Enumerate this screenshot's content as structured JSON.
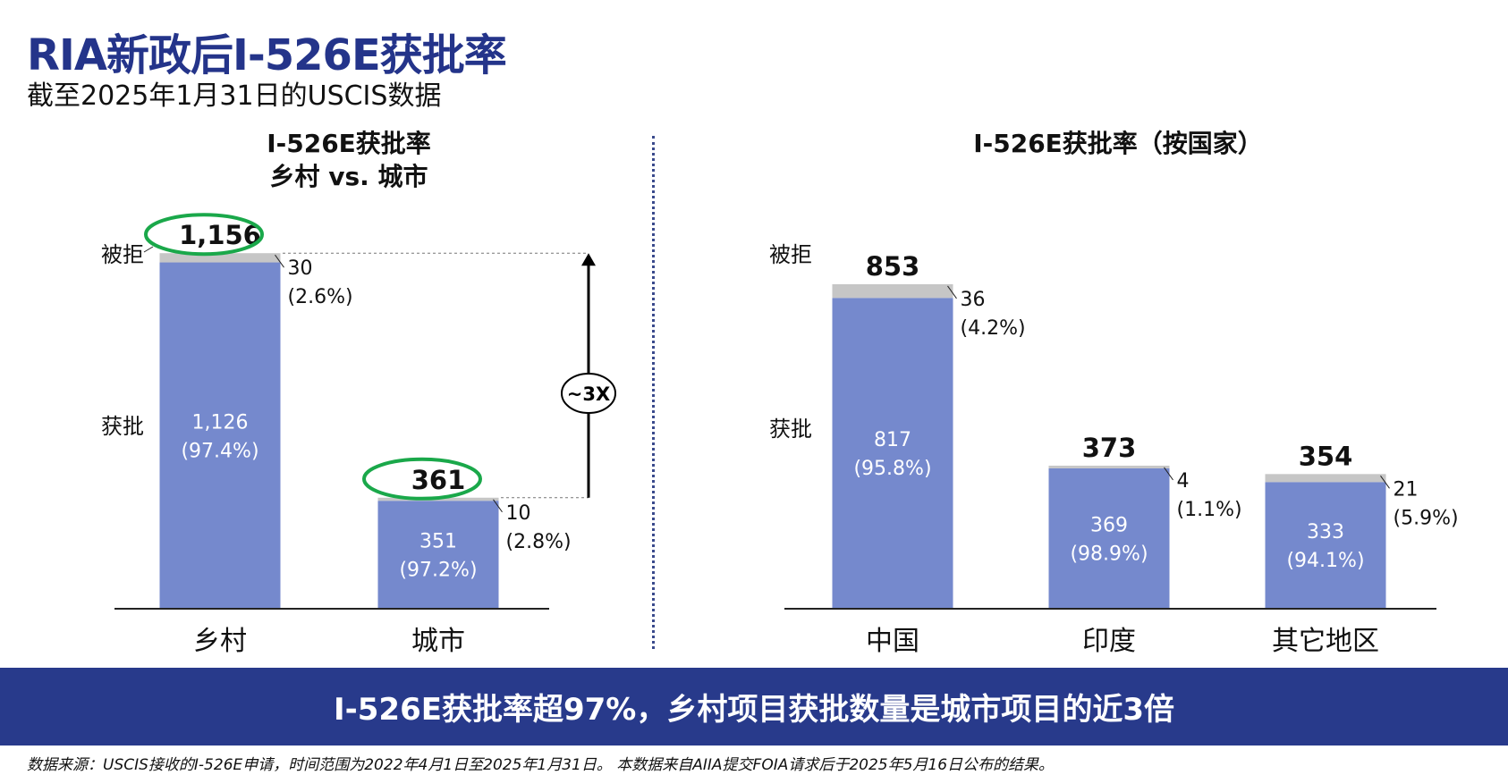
{
  "header": {
    "title": "RIA新政后I-526E获批率",
    "subtitle": "截至2025年1月31日的USCIS数据"
  },
  "chart_data": [
    {
      "type": "bar",
      "stacked": true,
      "title_lines": [
        "I-526E获批率",
        "乡村 vs. 城市"
      ],
      "categories": [
        "乡村",
        "城市"
      ],
      "totals": [
        "1,156",
        "361"
      ],
      "series": [
        {
          "name": "获批",
          "values": [
            1126,
            351
          ],
          "labels": [
            "1,126",
            "351"
          ],
          "pcts": [
            "(97.4%)",
            "(97.2%)"
          ],
          "color": "#7589cd"
        },
        {
          "name": "被拒",
          "values": [
            30,
            10
          ],
          "labels": [
            "30",
            "10"
          ],
          "pcts": [
            "(2.6%)",
            "(2.8%)"
          ],
          "color": "#c6c6c6"
        }
      ],
      "highlight_color": "#1aa84a",
      "comparison_label": "~3X",
      "ylim": [
        0,
        1156
      ]
    },
    {
      "type": "bar",
      "stacked": true,
      "title_lines": [
        "I-526E获批率（按国家）"
      ],
      "categories": [
        "中国",
        "印度",
        "其它地区"
      ],
      "totals": [
        "853",
        "373",
        "354"
      ],
      "series": [
        {
          "name": "获批",
          "values": [
            817,
            369,
            333
          ],
          "labels": [
            "817",
            "369",
            "333"
          ],
          "pcts": [
            "(95.8%)",
            "(98.9%)",
            "(94.1%)"
          ],
          "color": "#7589cd"
        },
        {
          "name": "被拒",
          "values": [
            36,
            4,
            21
          ],
          "labels": [
            "36",
            "4",
            "21"
          ],
          "pcts": [
            "(4.2%)",
            "(1.1%)",
            "(5.9%)"
          ],
          "color": "#c6c6c6"
        }
      ],
      "ylim": [
        0,
        853
      ]
    }
  ],
  "banner": {
    "text": "I-526E获批率超97%，乡村项目获批数量是城市项目的近3倍"
  },
  "footnote": "数据来源：USCIS接收的I-526E申请，时间范围为2022年4月1日至2025年1月31日。 本数据来自AIIA提交FOIA请求后于2025年5月16日公布的结果。"
}
